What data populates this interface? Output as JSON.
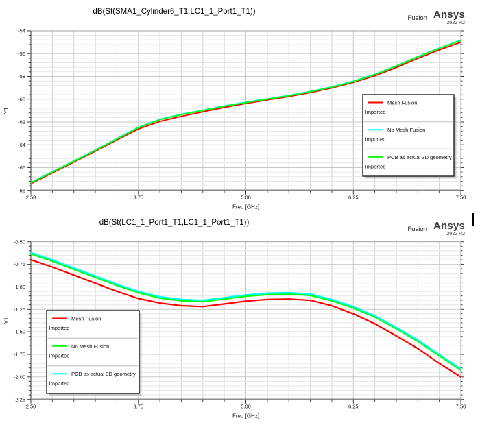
{
  "branding": {
    "app": "Fusion",
    "logo": "Ansys",
    "version": "2022 R2"
  },
  "colors": {
    "series_red": "#ff0000",
    "series_cyan": "#00ffff",
    "series_green": "#00ff00",
    "grid_minor_h": "#e6e6e6",
    "grid_major_h": "#c8c8c8",
    "grid_minor_v": "#d4d4d4",
    "grid_major_v": "#c4c4c4",
    "frame": "#a0a0a0",
    "axis": "#8a8a8a",
    "tick": "#3a3a3a",
    "legend_border": "#1f1f1f",
    "legend_shadow": "#a8a8a8",
    "legend_divider": "#c0c0c0",
    "ansys_logo": "#3f3f3f"
  },
  "chart_data": [
    {
      "type": "line",
      "title": "dB(St(SMA1_Cylinder6_T1,LC1_1_Port1_T1))",
      "xlabel": "Freq [GHz]",
      "ylabel": "Y1",
      "xlim": [
        2.5,
        7.5
      ],
      "ylim": [
        -68,
        -54
      ],
      "grid": true,
      "xticks": {
        "major": [
          2.5,
          3.75,
          5.0,
          6.25,
          7.5
        ],
        "labels": [
          "2.50",
          "3.75",
          "5.00",
          "6.25",
          "7.50"
        ],
        "minor_step": 0.25
      },
      "yticks": {
        "major": [
          -54,
          -56,
          -58,
          -60,
          -62,
          -64,
          -66,
          -68
        ],
        "labels": [
          "-54",
          "-56",
          "-58",
          "-60",
          "-62",
          "-64",
          "-66",
          "-68"
        ],
        "minor_step": 0.4
      },
      "legend_position": "middle-right",
      "x": [
        2.5,
        2.75,
        3.0,
        3.25,
        3.5,
        3.75,
        4.0,
        4.25,
        4.5,
        4.75,
        5.0,
        5.25,
        5.5,
        5.75,
        6.0,
        6.25,
        6.5,
        6.75,
        7.0,
        7.25,
        7.5
      ],
      "series": [
        {
          "name": "Mesh Fusion",
          "sublabel": "Imported",
          "color": "#ff0000",
          "values": [
            -67.42,
            -66.47,
            -65.52,
            -64.57,
            -63.58,
            -62.62,
            -61.95,
            -61.5,
            -61.12,
            -60.72,
            -60.38,
            -60.07,
            -59.77,
            -59.42,
            -59.02,
            -58.52,
            -57.95,
            -57.22,
            -56.42,
            -55.68,
            -55.0
          ]
        },
        {
          "name": "No Mesh Fusion",
          "sublabel": "Imported",
          "color": "#00ffff",
          "values": [
            -67.31,
            -66.36,
            -65.41,
            -64.46,
            -63.46,
            -62.46,
            -61.76,
            -61.31,
            -60.96,
            -60.58,
            -60.26,
            -59.96,
            -59.66,
            -59.31,
            -58.91,
            -58.41,
            -57.81,
            -57.06,
            -56.26,
            -55.51,
            -54.81
          ]
        },
        {
          "name": "PCB as actual 3D geometry",
          "sublabel": "Imported",
          "color": "#00ff00",
          "values": [
            -67.35,
            -66.4,
            -65.45,
            -64.5,
            -63.5,
            -62.5,
            -61.8,
            -61.35,
            -61.0,
            -60.62,
            -60.3,
            -60.0,
            -59.7,
            -59.35,
            -58.95,
            -58.45,
            -57.85,
            -57.1,
            -56.3,
            -55.55,
            -54.85
          ]
        }
      ]
    },
    {
      "type": "line",
      "title": "dB(St(LC1_1_Port1_T1,LC1_1_Port1_T1))",
      "xlabel": "Freq [GHz]",
      "ylabel": "Y1",
      "xlim": [
        2.5,
        7.5
      ],
      "ylim": [
        -2.25,
        -0.5
      ],
      "grid": true,
      "xticks": {
        "major": [
          2.5,
          3.75,
          5.0,
          6.25,
          7.5
        ],
        "labels": [
          "2.50",
          "3.75",
          "5.00",
          "6.25",
          "7.50"
        ],
        "minor_step": 0.25
      },
      "yticks": {
        "major": [
          -0.5,
          -0.75,
          -1.0,
          -1.25,
          -1.5,
          -1.75,
          -2.0,
          -2.25
        ],
        "labels": [
          "-0.50",
          "-0.75",
          "-1.00",
          "-1.25",
          "-1.50",
          "-1.75",
          "-2.00",
          "-2.25"
        ],
        "minor_step": 0.05
      },
      "legend_position": "bottom-left",
      "x": [
        2.5,
        2.75,
        3.0,
        3.25,
        3.5,
        3.75,
        4.0,
        4.25,
        4.5,
        4.75,
        5.0,
        5.25,
        5.5,
        5.75,
        6.0,
        6.25,
        6.5,
        6.75,
        7.0,
        7.25,
        7.5
      ],
      "series": [
        {
          "name": "Mesh Fusion",
          "sublabel": "Imported",
          "color": "#ff0000",
          "values": [
            -0.7,
            -0.78,
            -0.87,
            -0.96,
            -1.05,
            -1.13,
            -1.18,
            -1.21,
            -1.22,
            -1.19,
            -1.16,
            -1.14,
            -1.135,
            -1.15,
            -1.21,
            -1.3,
            -1.41,
            -1.545,
            -1.685,
            -1.85,
            -2.0
          ]
        },
        {
          "name": "No Mesh Fusion",
          "sublabel": "Imported",
          "color": "#00ff00",
          "values": [
            -0.635,
            -0.715,
            -0.805,
            -0.895,
            -0.985,
            -1.065,
            -1.125,
            -1.155,
            -1.165,
            -1.135,
            -1.105,
            -1.085,
            -1.08,
            -1.095,
            -1.155,
            -1.235,
            -1.335,
            -1.465,
            -1.605,
            -1.765,
            -1.925
          ]
        },
        {
          "name": "PCB as actual 3D geometry",
          "sublabel": "Imported",
          "color": "#00ffff",
          "values": [
            -0.62,
            -0.7,
            -0.79,
            -0.88,
            -0.97,
            -1.05,
            -1.11,
            -1.14,
            -1.15,
            -1.12,
            -1.09,
            -1.07,
            -1.065,
            -1.08,
            -1.14,
            -1.22,
            -1.32,
            -1.45,
            -1.59,
            -1.75,
            -1.91
          ]
        }
      ]
    }
  ]
}
